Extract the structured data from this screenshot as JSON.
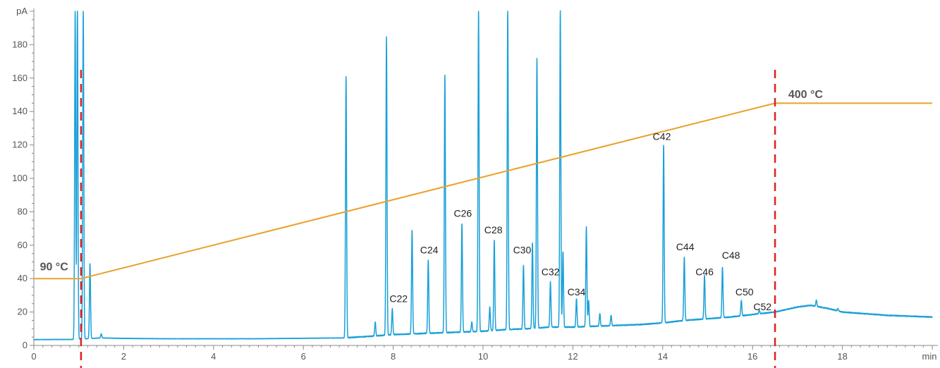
{
  "chart_data": {
    "type": "line",
    "title": "",
    "xlabel": "min",
    "ylabel": "pA",
    "xlim": [
      0,
      20
    ],
    "ylim": [
      0,
      200
    ],
    "x_ticks": [
      0,
      2,
      4,
      6,
      8,
      10,
      12,
      14,
      16,
      18
    ],
    "y_ticks": [
      0,
      20,
      40,
      60,
      80,
      100,
      120,
      140,
      160,
      180
    ],
    "grid": false,
    "colors": {
      "signal": "#1aa0d8",
      "temperature": "#e8a22a",
      "marker": "#e02020",
      "axis": "#888888"
    },
    "series": [
      {
        "kind": "chromatogram",
        "baseline": [
          [
            0,
            3.5
          ],
          [
            0.85,
            3.6
          ],
          [
            1.0,
            3.8
          ],
          [
            1.5,
            4.5
          ],
          [
            2,
            4.2
          ],
          [
            3,
            4.0
          ],
          [
            4,
            4.0
          ],
          [
            5,
            4.0
          ],
          [
            6,
            4.3
          ],
          [
            6.9,
            4.5
          ],
          [
            7.5,
            5.5
          ],
          [
            8,
            6.5
          ],
          [
            8.5,
            7
          ],
          [
            9,
            7.5
          ],
          [
            9.5,
            8
          ],
          [
            10,
            8.5
          ],
          [
            10.5,
            9.5
          ],
          [
            11,
            10
          ],
          [
            11.5,
            11
          ],
          [
            12,
            11
          ],
          [
            12.5,
            11.5
          ],
          [
            13,
            12
          ],
          [
            13.5,
            12.5
          ],
          [
            14,
            13.5
          ],
          [
            14.5,
            15
          ],
          [
            15,
            16
          ],
          [
            15.5,
            17
          ],
          [
            16,
            18.5
          ],
          [
            16.5,
            20
          ],
          [
            17,
            23
          ],
          [
            17.3,
            24
          ],
          [
            17.7,
            22
          ],
          [
            18,
            20
          ],
          [
            18.5,
            19
          ],
          [
            19,
            18
          ],
          [
            19.5,
            17.5
          ],
          [
            20,
            17
          ]
        ],
        "peaks": [
          {
            "x": 0.92,
            "y": 200
          },
          {
            "x": 0.97,
            "y": 200
          },
          {
            "x": 1.1,
            "y": 200
          },
          {
            "x": 1.25,
            "y": 49
          },
          {
            "x": 1.5,
            "y": 7
          },
          {
            "x": 6.95,
            "y": 161
          },
          {
            "x": 7.6,
            "y": 14
          },
          {
            "x": 7.85,
            "y": 185
          },
          {
            "x": 7.98,
            "y": 22
          },
          {
            "x": 8.42,
            "y": 69
          },
          {
            "x": 8.78,
            "y": 51
          },
          {
            "x": 9.15,
            "y": 162
          },
          {
            "x": 9.53,
            "y": 73
          },
          {
            "x": 9.75,
            "y": 14
          },
          {
            "x": 9.9,
            "y": 200
          },
          {
            "x": 10.15,
            "y": 23
          },
          {
            "x": 10.25,
            "y": 63
          },
          {
            "x": 10.55,
            "y": 200
          },
          {
            "x": 10.9,
            "y": 48
          },
          {
            "x": 11.1,
            "y": 61
          },
          {
            "x": 11.2,
            "y": 172
          },
          {
            "x": 11.5,
            "y": 38
          },
          {
            "x": 11.72,
            "y": 200
          },
          {
            "x": 11.78,
            "y": 56
          },
          {
            "x": 12.08,
            "y": 28
          },
          {
            "x": 12.3,
            "y": 71
          },
          {
            "x": 12.35,
            "y": 27
          },
          {
            "x": 12.6,
            "y": 19
          },
          {
            "x": 12.85,
            "y": 18
          },
          {
            "x": 14.02,
            "y": 120
          },
          {
            "x": 14.48,
            "y": 53
          },
          {
            "x": 14.93,
            "y": 42
          },
          {
            "x": 15.33,
            "y": 47
          },
          {
            "x": 15.75,
            "y": 27
          },
          {
            "x": 16.15,
            "y": 21
          },
          {
            "x": 17.42,
            "y": 27
          },
          {
            "x": 17.9,
            "y": 22
          }
        ]
      },
      {
        "kind": "temperature-program",
        "points": [
          [
            0,
            40
          ],
          [
            1.05,
            40
          ],
          [
            16.5,
            145
          ],
          [
            20,
            145
          ]
        ]
      }
    ],
    "peak_labels": [
      {
        "text": "C22",
        "x": 8.12,
        "y": 26
      },
      {
        "text": "C24",
        "x": 8.8,
        "y": 55
      },
      {
        "text": "C26",
        "x": 9.55,
        "y": 77
      },
      {
        "text": "C28",
        "x": 10.23,
        "y": 67
      },
      {
        "text": "C30",
        "x": 10.87,
        "y": 55
      },
      {
        "text": "C32",
        "x": 11.5,
        "y": 42
      },
      {
        "text": "C34",
        "x": 12.08,
        "y": 30
      },
      {
        "text": "C42",
        "x": 13.98,
        "y": 123
      },
      {
        "text": "C44",
        "x": 14.5,
        "y": 57
      },
      {
        "text": "C46",
        "x": 14.93,
        "y": 42
      },
      {
        "text": "C48",
        "x": 15.52,
        "y": 52
      },
      {
        "text": "C50",
        "x": 15.82,
        "y": 30
      },
      {
        "text": "C52",
        "x": 16.22,
        "y": 21
      }
    ],
    "temperature_labels": [
      {
        "text": "90 °C",
        "x": 0.45,
        "y": 45
      },
      {
        "text": "400 °C",
        "x": 17.18,
        "y": 148
      }
    ],
    "markers": [
      1.05,
      16.5
    ]
  }
}
